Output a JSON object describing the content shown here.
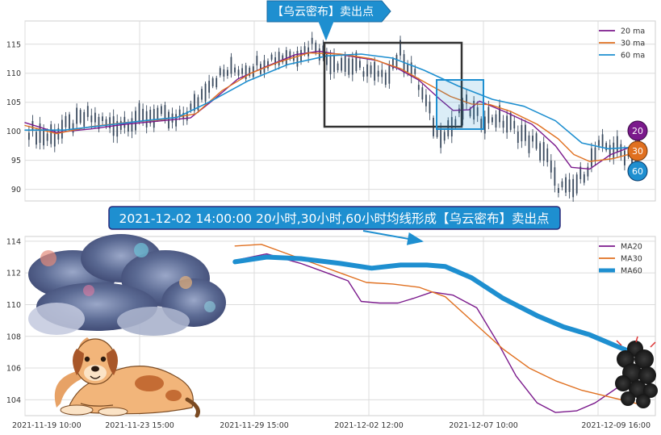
{
  "top_callout": "【乌云密布】卖出点",
  "bottom_callout": "2021-12-02 14:00:00 20小时,30小时,60小时均线形成【乌云密布】卖出点",
  "badges": [
    "20",
    "30",
    "60"
  ],
  "colors": {
    "ma20": "#7b1a8c",
    "ma30": "#e07020",
    "ma60": "#1e8fd0",
    "candle": "#3a4a5e",
    "callout_bg": "#1e8fd0",
    "callout_border": "#2a2a7a",
    "box_dark": "#333333",
    "box_blue": "#1e8fd0"
  },
  "chart_data": [
    {
      "type": "line",
      "panel": "top",
      "description_free": true,
      "ylim": [
        88,
        119
      ],
      "yticks": [
        90,
        95,
        100,
        105,
        110,
        115
      ],
      "x_range": [
        0,
        24
      ],
      "legend": [
        "20 ma",
        "30 ma",
        "60 ma"
      ],
      "legend_position": "top-right",
      "grid": true,
      "price_path": [
        [
          0.0,
          100.5
        ],
        [
          0.9,
          99.0
        ],
        [
          1.7,
          101.0
        ],
        [
          2.4,
          102.5
        ],
        [
          3.3,
          101.0
        ],
        [
          4.2,
          102.0
        ],
        [
          5.0,
          103.0
        ],
        [
          5.7,
          101.5
        ],
        [
          6.5,
          104.5
        ],
        [
          7.0,
          108.5
        ],
        [
          7.8,
          110.5
        ],
        [
          8.6,
          111.0
        ],
        [
          9.3,
          112.5
        ],
        [
          10.0,
          113.0
        ],
        [
          10.7,
          114.0
        ],
        [
          11.0,
          115.5
        ],
        [
          11.5,
          112.5
        ],
        [
          12.3,
          111.5
        ],
        [
          13.0,
          110.5
        ],
        [
          13.6,
          109.0
        ],
        [
          14.3,
          113.5
        ],
        [
          14.8,
          110.0
        ],
        [
          15.3,
          104.5
        ],
        [
          15.7,
          99.5
        ],
        [
          16.3,
          101.0
        ],
        [
          16.8,
          104.5
        ],
        [
          17.3,
          102.0
        ],
        [
          17.9,
          102.5
        ],
        [
          18.5,
          101.0
        ],
        [
          19.2,
          98.5
        ],
        [
          19.8,
          96.5
        ],
        [
          20.2,
          91.0
        ],
        [
          20.8,
          89.5
        ],
        [
          21.3,
          93.0
        ],
        [
          21.9,
          97.5
        ],
        [
          22.5,
          97.0
        ],
        [
          23.0,
          96.0
        ],
        [
          23.5,
          97.0
        ]
      ],
      "series": [
        {
          "name": "20 ma",
          "points": [
            [
              0.0,
              101.5
            ],
            [
              1.2,
              99.8
            ],
            [
              2.5,
              100.4
            ],
            [
              3.8,
              101.2
            ],
            [
              5.2,
              101.8
            ],
            [
              6.3,
              102.3
            ],
            [
              7.2,
              105.5
            ],
            [
              8.1,
              109.0
            ],
            [
              9.2,
              111.2
            ],
            [
              10.3,
              113.2
            ],
            [
              11.2,
              113.8
            ],
            [
              12.3,
              113.0
            ],
            [
              13.4,
              112.2
            ],
            [
              14.2,
              110.8
            ],
            [
              15.0,
              108.8
            ],
            [
              15.8,
              105.5
            ],
            [
              16.3,
              103.6
            ],
            [
              16.9,
              103.7
            ],
            [
              17.3,
              105.2
            ],
            [
              18.3,
              103.3
            ],
            [
              19.3,
              101.2
            ],
            [
              20.2,
              97.5
            ],
            [
              20.8,
              93.8
            ],
            [
              21.5,
              93.5
            ],
            [
              22.3,
              96.0
            ],
            [
              23.0,
              97.2
            ],
            [
              23.6,
              97.2
            ]
          ]
        },
        {
          "name": "30 ma",
          "points": [
            [
              0.0,
              101.0
            ],
            [
              1.2,
              99.6
            ],
            [
              2.5,
              100.8
            ],
            [
              3.8,
              101.5
            ],
            [
              5.2,
              102.0
            ],
            [
              6.5,
              103.0
            ],
            [
              7.5,
              107.0
            ],
            [
              8.6,
              110.0
            ],
            [
              9.7,
              112.0
            ],
            [
              10.8,
              113.5
            ],
            [
              12.0,
              113.3
            ],
            [
              13.2,
              112.5
            ],
            [
              14.3,
              110.8
            ],
            [
              15.2,
              108.5
            ],
            [
              16.2,
              106.0
            ],
            [
              17.0,
              104.7
            ],
            [
              17.7,
              104.6
            ],
            [
              18.5,
              103.4
            ],
            [
              19.5,
              101.2
            ],
            [
              20.3,
              98.7
            ],
            [
              20.9,
              96.0
            ],
            [
              21.5,
              94.8
            ],
            [
              22.4,
              95.3
            ],
            [
              23.2,
              96.3
            ],
            [
              23.6,
              96.7
            ]
          ]
        },
        {
          "name": "60 ma",
          "points": [
            [
              0.0,
              100.2
            ],
            [
              1.5,
              100.2
            ],
            [
              3.0,
              101.0
            ],
            [
              4.5,
              101.8
            ],
            [
              5.8,
              102.4
            ],
            [
              7.0,
              105.0
            ],
            [
              8.5,
              108.7
            ],
            [
              10.0,
              111.5
            ],
            [
              11.5,
              113.0
            ],
            [
              12.8,
              113.3
            ],
            [
              14.0,
              112.6
            ],
            [
              15.2,
              110.5
            ],
            [
              16.5,
              107.8
            ],
            [
              17.8,
              105.5
            ],
            [
              19.0,
              104.3
            ],
            [
              20.2,
              101.8
            ],
            [
              21.2,
              98.0
            ],
            [
              22.2,
              97.0
            ],
            [
              23.0,
              97.2
            ],
            [
              23.6,
              97.8
            ]
          ]
        }
      ]
    },
    {
      "type": "line",
      "panel": "bottom",
      "ylim": [
        103,
        114.3
      ],
      "yticks": [
        104,
        106,
        108,
        110,
        112,
        114
      ],
      "x_range": [
        0,
        24
      ],
      "xtick_labels": [
        "2021-11-19 10:00",
        "2021-11-23 15:00",
        "2021-11-29 15:00",
        "2021-12-02 12:00",
        "2021-12-07 10:00",
        "2021-12-09 16:00"
      ],
      "legend": [
        "MA20",
        "MA30",
        "MA60"
      ],
      "legend_position": "top-right",
      "grid": true,
      "series": [
        {
          "name": "MA20",
          "points": [
            [
              8.0,
              112.8
            ],
            [
              9.2,
              113.2
            ],
            [
              10.5,
              112.6
            ],
            [
              11.5,
              112.0
            ],
            [
              12.3,
              111.5
            ],
            [
              12.8,
              110.2
            ],
            [
              13.5,
              110.1
            ],
            [
              14.2,
              110.1
            ],
            [
              14.8,
              110.4
            ],
            [
              15.5,
              110.8
            ],
            [
              16.3,
              110.6
            ],
            [
              17.2,
              109.8
            ],
            [
              18.0,
              107.6
            ],
            [
              18.7,
              105.5
            ],
            [
              19.5,
              103.8
            ],
            [
              20.2,
              103.2
            ],
            [
              21.0,
              103.3
            ],
            [
              21.7,
              103.8
            ],
            [
              22.5,
              104.7
            ],
            [
              23.3,
              105.5
            ],
            [
              23.7,
              106.0
            ]
          ]
        },
        {
          "name": "MA30",
          "points": [
            [
              8.0,
              113.7
            ],
            [
              9.0,
              113.8
            ],
            [
              10.0,
              113.2
            ],
            [
              11.0,
              112.6
            ],
            [
              12.0,
              112.0
            ],
            [
              13.0,
              111.4
            ],
            [
              14.0,
              111.3
            ],
            [
              15.0,
              111.1
            ],
            [
              16.0,
              110.5
            ],
            [
              17.2,
              108.7
            ],
            [
              18.2,
              107.2
            ],
            [
              19.2,
              106.0
            ],
            [
              20.2,
              105.2
            ],
            [
              21.2,
              104.6
            ],
            [
              22.2,
              104.2
            ],
            [
              23.7,
              103.6
            ]
          ]
        },
        {
          "name": "MA60",
          "points": [
            [
              8.0,
              112.7
            ],
            [
              9.2,
              113.0
            ],
            [
              10.5,
              112.9
            ],
            [
              12.0,
              112.6
            ],
            [
              13.2,
              112.3
            ],
            [
              14.3,
              112.5
            ],
            [
              15.3,
              112.5
            ],
            [
              16.0,
              112.4
            ],
            [
              17.0,
              111.7
            ],
            [
              18.2,
              110.4
            ],
            [
              19.5,
              109.3
            ],
            [
              20.5,
              108.6
            ],
            [
              21.5,
              108.1
            ],
            [
              22.5,
              107.4
            ],
            [
              23.7,
              106.6
            ]
          ]
        }
      ]
    }
  ]
}
